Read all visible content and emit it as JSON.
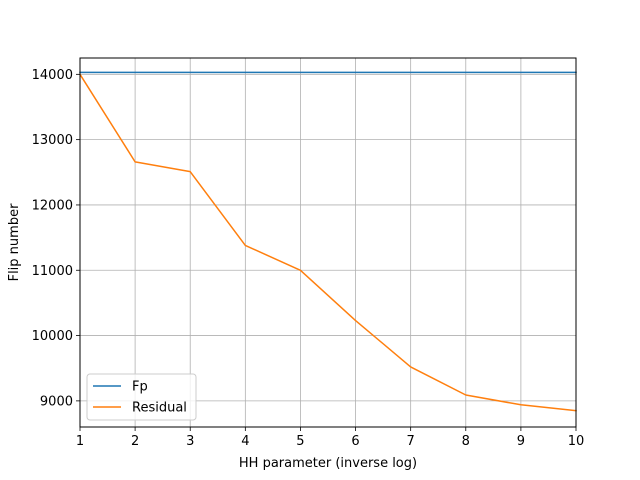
{
  "chart_data": {
    "type": "line",
    "title": "",
    "xlabel": "HH parameter (inverse log)",
    "ylabel": "Flip number",
    "xlim": [
      1,
      10
    ],
    "ylim": [
      8600,
      14250
    ],
    "x": [
      1,
      2,
      3,
      4,
      5,
      6,
      7,
      8,
      9,
      10
    ],
    "xticks": [
      1,
      2,
      3,
      4,
      5,
      6,
      7,
      8,
      9,
      10
    ],
    "yticks": [
      9000,
      10000,
      11000,
      12000,
      13000,
      14000
    ],
    "grid": true,
    "legend_position": "lower-left",
    "series": [
      {
        "name": "Fp",
        "color": "#1f77b4",
        "values": [
          14030,
          14030,
          14030,
          14030,
          14030,
          14030,
          14030,
          14030,
          14030,
          14030
        ]
      },
      {
        "name": "Residual",
        "color": "#ff7f0e",
        "values": [
          14000,
          12660,
          12510,
          11380,
          11000,
          10230,
          9520,
          9090,
          8940,
          8850
        ]
      }
    ]
  }
}
